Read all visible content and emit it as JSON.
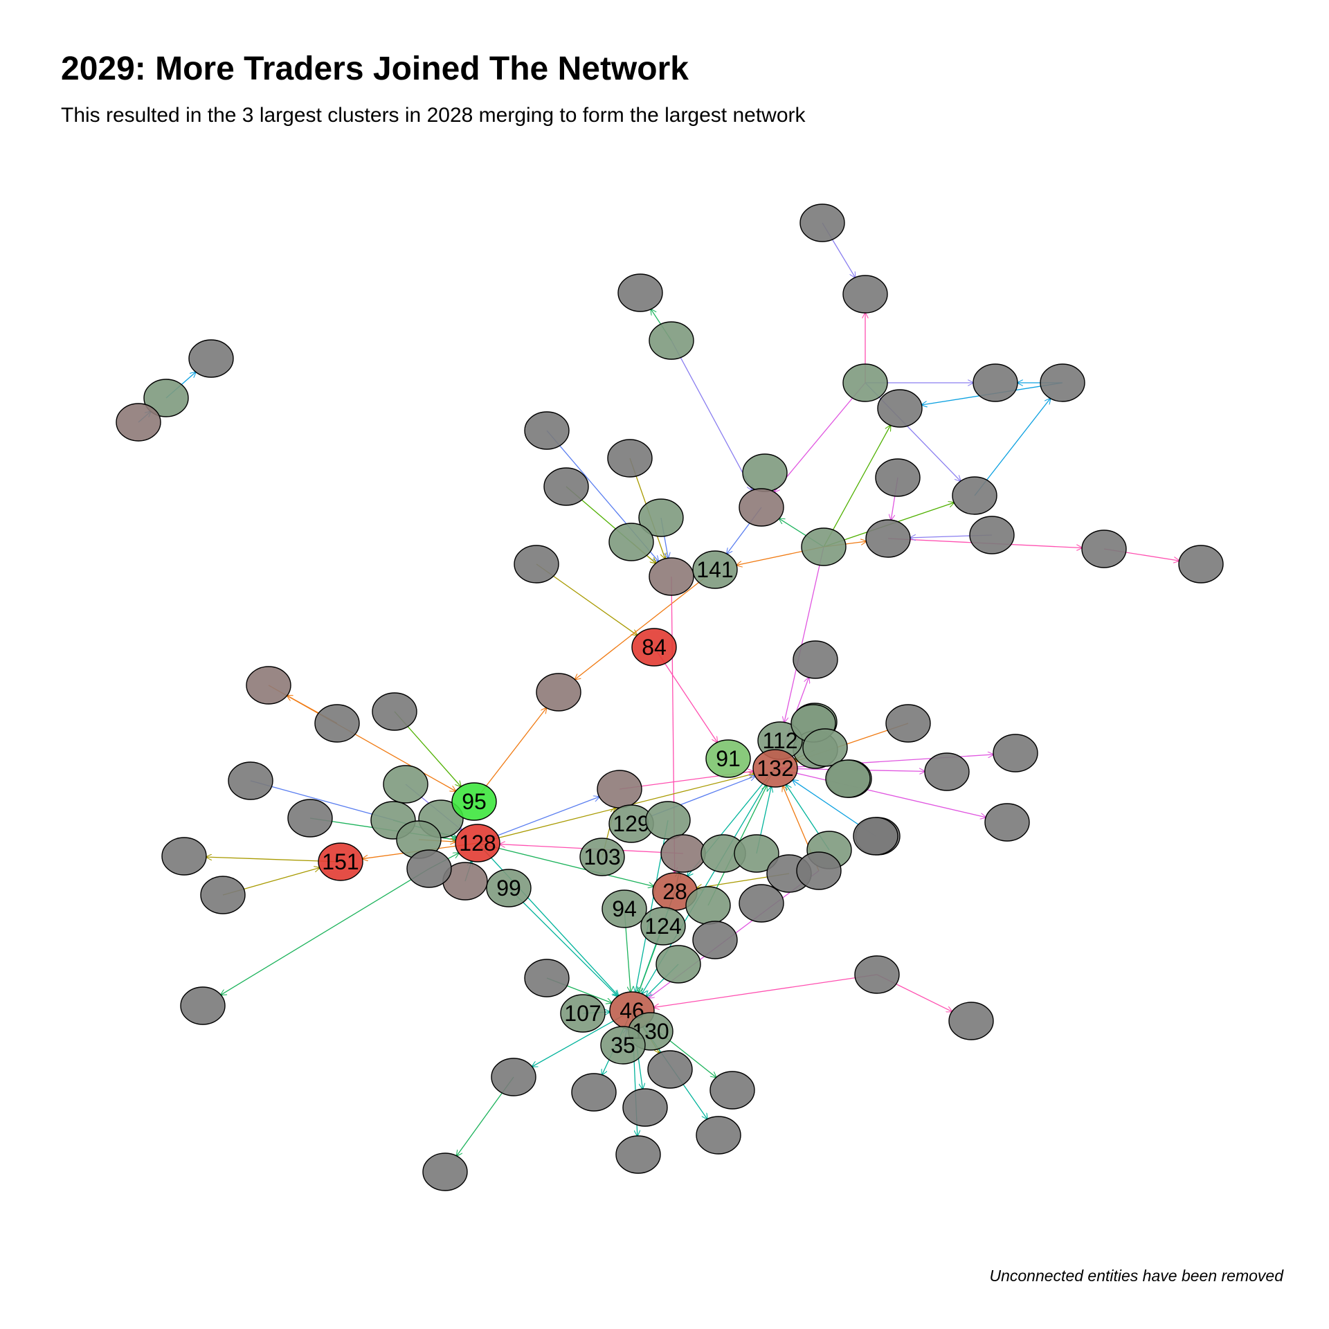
{
  "title": "2029: More Traders Joined The Network",
  "subtitle": "This resulted in the 3 largest clusters in 2028 merging to form the largest network",
  "caption": "Unconnected entities have been removed",
  "colors": {
    "grey": "#7a7a7a",
    "greenish": "#7e9a7e",
    "brown": "#8e7a78",
    "light_green": "#7cc46e",
    "bright_green": "#3ee63e",
    "red": "#e23b32",
    "red_brown": "#bf5f4e",
    "edge_pink": "#ff4fb0",
    "edge_magenta": "#e055e0",
    "edge_green": "#1ab25a",
    "edge_teal": "#00b39b",
    "edge_orange": "#f07a12",
    "edge_olive": "#a89a00",
    "edge_blue": "#5a7ef0",
    "edge_cyan": "#0aa0e0",
    "edge_purple": "#8a7ef0",
    "edge_lime": "#4fb000"
  },
  "nodes": [
    {
      "id": "g1",
      "label": "",
      "fill": "grey"
    },
    {
      "id": "g2",
      "label": "",
      "fill": "greenish"
    },
    {
      "id": "g3",
      "label": "",
      "fill": "brown"
    },
    {
      "id": "a1",
      "label": "",
      "fill": "grey"
    },
    {
      "id": "a2",
      "label": "",
      "fill": "grey"
    },
    {
      "id": "a3",
      "label": "",
      "fill": "grey"
    },
    {
      "id": "a4",
      "label": "",
      "fill": "greenish"
    },
    {
      "id": "a5",
      "label": "",
      "fill": "grey"
    },
    {
      "id": "a6",
      "label": "",
      "fill": "greenish"
    },
    {
      "id": "a7",
      "label": "",
      "fill": "grey"
    },
    {
      "id": "a8",
      "label": "",
      "fill": "grey"
    },
    {
      "id": "a9",
      "label": "",
      "fill": "grey"
    },
    {
      "id": "a10",
      "label": "",
      "fill": "grey"
    },
    {
      "id": "a11",
      "label": "",
      "fill": "greenish"
    },
    {
      "id": "a12",
      "label": "",
      "fill": "brown"
    },
    {
      "id": "a13",
      "label": "",
      "fill": "greenish"
    },
    {
      "id": "a14",
      "label": "",
      "fill": "grey"
    },
    {
      "id": "a15",
      "label": "",
      "fill": "grey"
    },
    {
      "id": "a16",
      "label": "",
      "fill": "grey"
    },
    {
      "id": "a17",
      "label": "",
      "fill": "grey"
    },
    {
      "id": "a18",
      "label": "",
      "fill": "grey"
    },
    {
      "id": "a19",
      "label": "",
      "fill": "grey"
    },
    {
      "id": "a20",
      "label": "",
      "fill": "grey"
    },
    {
      "id": "a21",
      "label": "",
      "fill": "greenish"
    },
    {
      "id": "a22",
      "label": "",
      "fill": "greenish"
    },
    {
      "id": "a23",
      "label": "",
      "fill": "brown"
    },
    {
      "id": "n141",
      "label": "141",
      "fill": "greenish"
    },
    {
      "id": "n84",
      "label": "84",
      "fill": "red"
    },
    {
      "id": "b1",
      "label": "",
      "fill": "grey"
    },
    {
      "id": "b2",
      "label": "",
      "fill": "brown"
    },
    {
      "id": "b3",
      "label": "",
      "fill": "grey"
    },
    {
      "id": "b4",
      "label": "",
      "fill": "brown"
    },
    {
      "id": "b5",
      "label": "",
      "fill": "grey"
    },
    {
      "id": "b6",
      "label": "",
      "fill": "grey"
    },
    {
      "id": "b7",
      "label": "",
      "fill": "greenish"
    },
    {
      "id": "b8",
      "label": "",
      "fill": "grey"
    },
    {
      "id": "b9",
      "label": "",
      "fill": "greenish"
    },
    {
      "id": "b10",
      "label": "",
      "fill": "greenish"
    },
    {
      "id": "b11",
      "label": "",
      "fill": "greenish"
    },
    {
      "id": "b12",
      "label": "",
      "fill": "greenish"
    },
    {
      "id": "b13",
      "label": "",
      "fill": "greenish"
    },
    {
      "id": "b14",
      "label": "",
      "fill": "greenish"
    },
    {
      "id": "b15",
      "label": "",
      "fill": "grey"
    },
    {
      "id": "b16",
      "label": "",
      "fill": "grey"
    },
    {
      "id": "n95",
      "label": "95",
      "fill": "bright_green"
    },
    {
      "id": "n128",
      "label": "128",
      "fill": "red"
    },
    {
      "id": "n151",
      "label": "151",
      "fill": "red"
    },
    {
      "id": "n99",
      "label": "99",
      "fill": "greenish"
    },
    {
      "id": "b17",
      "label": "",
      "fill": "grey"
    },
    {
      "id": "b18",
      "label": "",
      "fill": "brown"
    },
    {
      "id": "b19",
      "label": "",
      "fill": "grey"
    },
    {
      "id": "b20",
      "label": "",
      "fill": "brown"
    },
    {
      "id": "n129",
      "label": "129",
      "fill": "greenish"
    },
    {
      "id": "b21",
      "label": "",
      "fill": "greenish"
    },
    {
      "id": "n103",
      "label": "103",
      "fill": "greenish"
    },
    {
      "id": "b22",
      "label": "",
      "fill": "brown"
    },
    {
      "id": "n28",
      "label": "28",
      "fill": "red_brown"
    },
    {
      "id": "n94",
      "label": "94",
      "fill": "greenish"
    },
    {
      "id": "n124",
      "label": "124",
      "fill": "greenish"
    },
    {
      "id": "c1",
      "label": "",
      "fill": "greenish"
    },
    {
      "id": "c2",
      "label": "",
      "fill": "greenish"
    },
    {
      "id": "c3",
      "label": "",
      "fill": "grey"
    },
    {
      "id": "c4",
      "label": "",
      "fill": "greenish"
    },
    {
      "id": "c5",
      "label": "",
      "fill": "grey"
    },
    {
      "id": "c6",
      "label": "",
      "fill": "grey"
    },
    {
      "id": "c7",
      "label": "",
      "fill": "greenish"
    },
    {
      "id": "c8",
      "label": "",
      "fill": "grey"
    },
    {
      "id": "n91",
      "label": "91",
      "fill": "light_green"
    },
    {
      "id": "n112",
      "label": "112",
      "fill": "greenish"
    },
    {
      "id": "n132",
      "label": "132",
      "fill": "red_brown"
    },
    {
      "id": "c9",
      "label": "",
      "fill": "greenish"
    },
    {
      "id": "c10",
      "label": "",
      "fill": "greenish"
    },
    {
      "id": "c11",
      "label": "",
      "fill": "greenish"
    },
    {
      "id": "c12",
      "label": "",
      "fill": "grey"
    },
    {
      "id": "c13",
      "label": "",
      "fill": "grey"
    },
    {
      "id": "c14",
      "label": "",
      "fill": "grey"
    },
    {
      "id": "c15",
      "label": "",
      "fill": "grey"
    },
    {
      "id": "c16",
      "label": "",
      "fill": "grey"
    },
    {
      "id": "c17",
      "label": "",
      "fill": "grey"
    },
    {
      "id": "c18",
      "label": "",
      "fill": "grey"
    },
    {
      "id": "c19",
      "label": "",
      "fill": "greenish"
    },
    {
      "id": "n46",
      "label": "46",
      "fill": "red_brown"
    },
    {
      "id": "n107",
      "label": "107",
      "fill": "greenish"
    },
    {
      "id": "n130",
      "label": "130",
      "fill": "greenish"
    },
    {
      "id": "n35",
      "label": "35",
      "fill": "greenish"
    },
    {
      "id": "d1",
      "label": "",
      "fill": "grey"
    },
    {
      "id": "d2",
      "label": "",
      "fill": "grey"
    },
    {
      "id": "d3",
      "label": "",
      "fill": "grey"
    },
    {
      "id": "d4",
      "label": "",
      "fill": "grey"
    },
    {
      "id": "d5",
      "label": "",
      "fill": "grey"
    },
    {
      "id": "d6",
      "label": "",
      "fill": "grey"
    },
    {
      "id": "d7",
      "label": "",
      "fill": "grey"
    },
    {
      "id": "d8",
      "label": "",
      "fill": "grey"
    },
    {
      "id": "d9",
      "label": "",
      "fill": "grey"
    },
    {
      "id": "d10",
      "label": "",
      "fill": "grey"
    },
    {
      "id": "d11",
      "label": "",
      "fill": "grey"
    }
  ],
  "edges": [
    {
      "from": "g2",
      "to": "g1",
      "color": "edge_cyan"
    },
    {
      "from": "g3",
      "to": "g2",
      "color": "edge_cyan"
    },
    {
      "from": "a1",
      "to": "a2",
      "color": "edge_purple"
    },
    {
      "from": "a4",
      "to": "a2",
      "color": "edge_pink"
    },
    {
      "from": "a4",
      "to": "a7",
      "color": "edge_purple"
    },
    {
      "from": "a4",
      "to": "a10",
      "color": "edge_purple"
    },
    {
      "from": "a8",
      "to": "a5",
      "color": "edge_cyan"
    },
    {
      "from": "a8",
      "to": "a7",
      "color": "edge_cyan"
    },
    {
      "from": "a10",
      "to": "a8",
      "color": "edge_cyan"
    },
    {
      "from": "a13",
      "to": "a5",
      "color": "edge_lime"
    },
    {
      "from": "a13",
      "to": "a10",
      "color": "edge_lime"
    },
    {
      "from": "a14",
      "to": "a16",
      "color": "edge_pink"
    },
    {
      "from": "a16",
      "to": "a17",
      "color": "edge_pink"
    },
    {
      "from": "a15",
      "to": "a14",
      "color": "edge_purple"
    },
    {
      "from": "a9",
      "to": "a14",
      "color": "edge_magenta"
    },
    {
      "from": "a13",
      "to": "a14",
      "color": "edge_orange"
    },
    {
      "from": "a13",
      "to": "a12",
      "color": "edge_green"
    },
    {
      "from": "a4",
      "to": "a12",
      "color": "edge_magenta"
    },
    {
      "from": "a6",
      "to": "a3",
      "color": "edge_green"
    },
    {
      "from": "a6",
      "to": "a12",
      "color": "edge_purple"
    },
    {
      "from": "a12",
      "to": "n141",
      "color": "edge_blue"
    },
    {
      "from": "a13",
      "to": "n141",
      "color": "edge_orange"
    },
    {
      "from": "a18",
      "to": "a23",
      "color": "edge_blue"
    },
    {
      "from": "a19",
      "to": "a23",
      "color": "edge_olive"
    },
    {
      "from": "a20",
      "to": "a23",
      "color": "edge_lime"
    },
    {
      "from": "a21",
      "to": "a23",
      "color": "edge_blue"
    },
    {
      "from": "a22",
      "to": "a23",
      "color": "edge_olive"
    },
    {
      "from": "b1",
      "to": "n84",
      "color": "edge_olive"
    },
    {
      "from": "n141",
      "to": "b4",
      "color": "edge_orange"
    },
    {
      "from": "n84",
      "to": "n91",
      "color": "edge_pink"
    },
    {
      "from": "a13",
      "to": "n112",
      "color": "edge_magenta"
    },
    {
      "from": "a23",
      "to": "n28",
      "color": "edge_pink"
    },
    {
      "from": "n132",
      "to": "b8",
      "color": "edge_magenta"
    },
    {
      "from": "b3",
      "to": "b2",
      "color": "edge_orange"
    },
    {
      "from": "b2",
      "to": "n95",
      "color": "edge_orange"
    },
    {
      "from": "b5",
      "to": "n95",
      "color": "edge_lime"
    },
    {
      "from": "n95",
      "to": "b4",
      "color": "edge_orange"
    },
    {
      "from": "b6",
      "to": "n128",
      "color": "edge_blue"
    },
    {
      "from": "b15",
      "to": "n128",
      "color": "edge_green"
    },
    {
      "from": "b7",
      "to": "n128",
      "color": "edge_purple"
    },
    {
      "from": "n151",
      "to": "b16",
      "color": "edge_olive"
    },
    {
      "from": "b17",
      "to": "n151",
      "color": "edge_olive"
    },
    {
      "from": "n128",
      "to": "n151",
      "color": "edge_orange"
    },
    {
      "from": "b12",
      "to": "n128",
      "color": "edge_green"
    },
    {
      "from": "b14",
      "to": "n128",
      "color": "edge_orange"
    },
    {
      "from": "b19",
      "to": "n128",
      "color": "edge_green"
    },
    {
      "from": "b19",
      "to": "d11",
      "color": "edge_green"
    },
    {
      "from": "n128",
      "to": "n132",
      "color": "edge_olive"
    },
    {
      "from": "b20",
      "to": "n132",
      "color": "edge_pink"
    },
    {
      "from": "n128",
      "to": "n28",
      "color": "edge_green"
    },
    {
      "from": "n128",
      "to": "n46",
      "color": "edge_teal"
    },
    {
      "from": "b18",
      "to": "n128",
      "color": "edge_teal"
    },
    {
      "from": "b22",
      "to": "n128",
      "color": "edge_pink"
    },
    {
      "from": "n28",
      "to": "b22",
      "color": "edge_teal"
    },
    {
      "from": "c3",
      "to": "n28",
      "color": "edge_olive"
    },
    {
      "from": "n132",
      "to": "n28",
      "color": "edge_teal"
    },
    {
      "from": "n132",
      "to": "n46",
      "color": "edge_teal"
    },
    {
      "from": "n132",
      "to": "c15",
      "color": "edge_magenta"
    },
    {
      "from": "n132",
      "to": "c16",
      "color": "edge_magenta"
    },
    {
      "from": "n132",
      "to": "c17",
      "color": "edge_magenta"
    },
    {
      "from": "c12",
      "to": "n132",
      "color": "edge_orange"
    },
    {
      "from": "c13",
      "to": "n132",
      "color": "edge_cyan"
    },
    {
      "from": "c14",
      "to": "n132",
      "color": "edge_orange"
    },
    {
      "from": "c14",
      "to": "n46",
      "color": "edge_magenta"
    },
    {
      "from": "c18",
      "to": "n46",
      "color": "edge_pink"
    },
    {
      "from": "c18",
      "to": "d10",
      "color": "edge_pink"
    },
    {
      "from": "n129",
      "to": "n132",
      "color": "edge_blue"
    },
    {
      "from": "c4",
      "to": "n132",
      "color": "edge_teal"
    },
    {
      "from": "c7",
      "to": "n132",
      "color": "edge_green"
    },
    {
      "from": "c2",
      "to": "n132",
      "color": "edge_teal"
    },
    {
      "from": "b10",
      "to": "n132",
      "color": "edge_olive"
    },
    {
      "from": "n94",
      "to": "n46",
      "color": "edge_green"
    },
    {
      "from": "n103",
      "to": "b20",
      "color": "edge_olive"
    },
    {
      "from": "n28",
      "to": "n46",
      "color": "edge_teal"
    },
    {
      "from": "n99",
      "to": "n46",
      "color": "edge_teal"
    },
    {
      "from": "n46",
      "to": "d3",
      "color": "edge_teal"
    },
    {
      "from": "n46",
      "to": "d4",
      "color": "edge_teal"
    },
    {
      "from": "n46",
      "to": "d5",
      "color": "edge_olive"
    },
    {
      "from": "n46",
      "to": "d6",
      "color": "edge_green"
    },
    {
      "from": "n46",
      "to": "d7",
      "color": "edge_teal"
    },
    {
      "from": "n46",
      "to": "d8",
      "color": "edge_teal"
    },
    {
      "from": "d2",
      "to": "n46",
      "color": "edge_green"
    },
    {
      "from": "d1",
      "to": "d9",
      "color": "edge_green"
    },
    {
      "from": "n46",
      "to": "d1",
      "color": "edge_teal"
    },
    {
      "from": "n107",
      "to": "n46",
      "color": "edge_teal"
    },
    {
      "from": "n35",
      "to": "n46",
      "color": "edge_blue"
    },
    {
      "from": "b21",
      "to": "n46",
      "color": "edge_teal"
    },
    {
      "from": "c19",
      "to": "n46",
      "color": "edge_teal"
    },
    {
      "from": "n128",
      "to": "b20",
      "color": "edge_blue"
    },
    {
      "from": "n124",
      "to": "n46",
      "color": "edge_green"
    }
  ]
}
